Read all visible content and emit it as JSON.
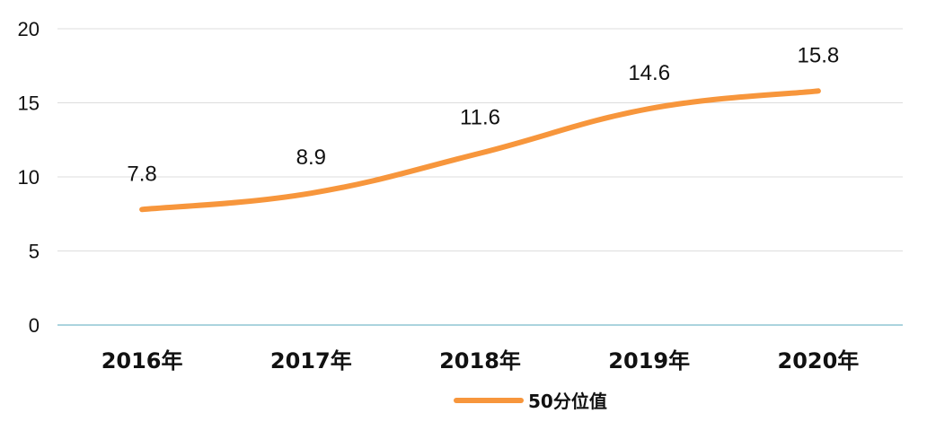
{
  "chart_data": {
    "type": "line",
    "categories": [
      "2016年",
      "2017年",
      "2018年",
      "2019年",
      "2020年"
    ],
    "series": [
      {
        "name": "50分位值",
        "values": [
          7.8,
          8.9,
          11.6,
          14.6,
          15.8
        ],
        "color": "#F7963C"
      }
    ],
    "ylim": [
      0,
      20
    ],
    "yticks": [
      "0",
      "5",
      "10",
      "15",
      "20"
    ],
    "data_labels": [
      "7.8",
      "8.9",
      "11.6",
      "14.6",
      "15.8"
    ],
    "grid": true,
    "legend": "bottom",
    "smooth": true
  }
}
